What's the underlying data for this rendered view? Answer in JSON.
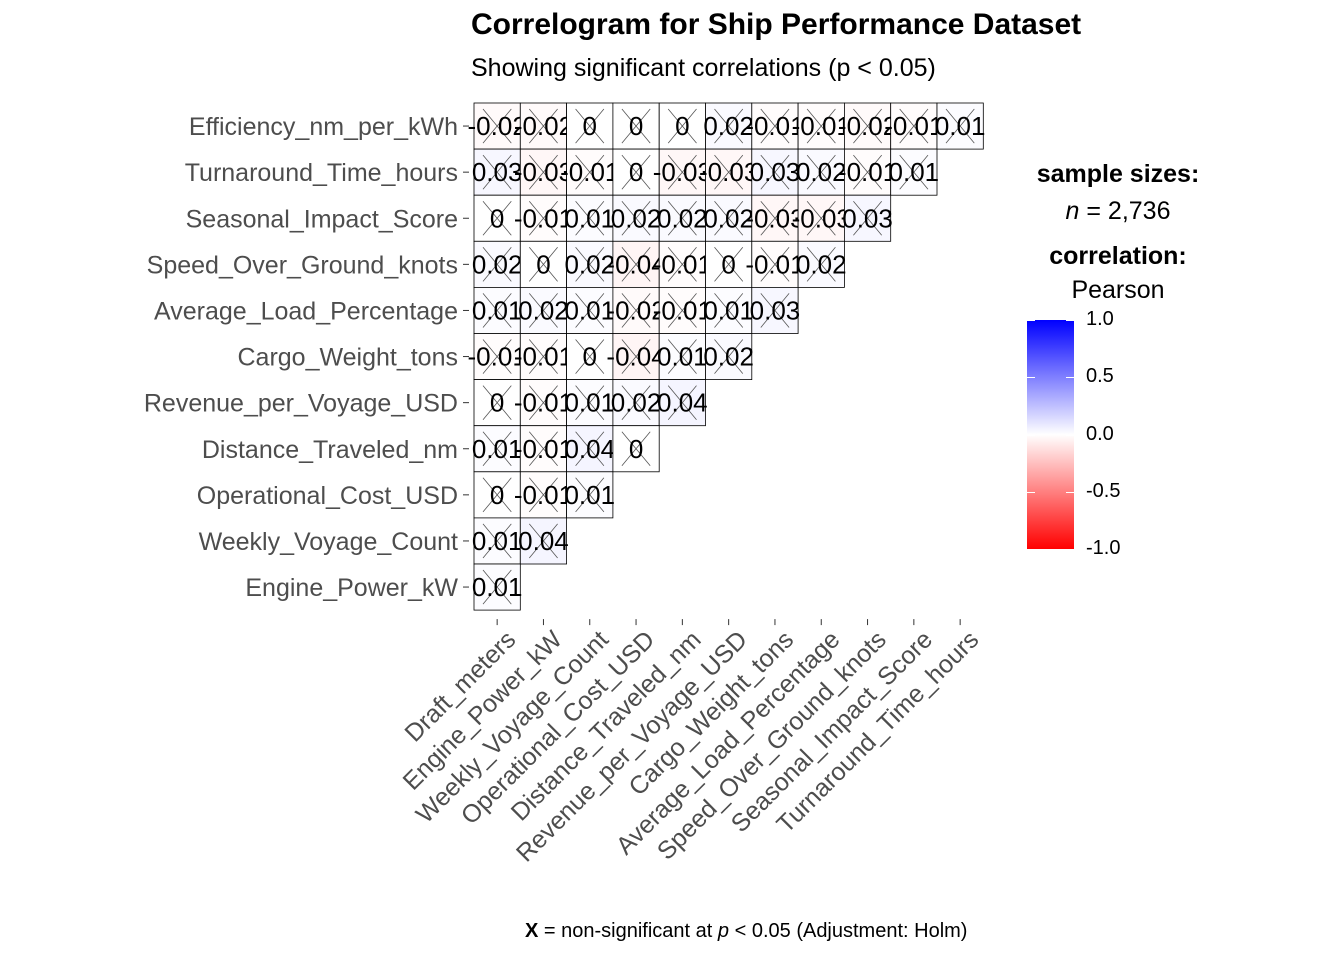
{
  "title": "Correlogram for Ship Performance Dataset",
  "subtitle": "Showing significant correlations (p < 0.05)",
  "legend": {
    "sample_title": "sample sizes:",
    "n_symbol": "n",
    "n_value": "= 2,736",
    "corr_title": "correlation:",
    "corr_method": "Pearson",
    "colorbar_ticks": [
      "1.0",
      "0.5",
      "0.0",
      "-0.5",
      "-1.0"
    ],
    "colors": {
      "high": "#0000ff",
      "mid": "#ffffff",
      "low": "#ff0000"
    }
  },
  "caption": {
    "x_mark": "X",
    "text1": "= non-significant at",
    "p": "p",
    "text2": "< 0.05 (Adjustment: Holm)"
  },
  "chart_data": {
    "type": "heatmap",
    "x_labels": [
      "Draft_meters",
      "Engine_Power_kW",
      "Weekly_Voyage_Count",
      "Operational_Cost_USD",
      "Distance_Traveled_nm",
      "Revenue_per_Voyage_USD",
      "Cargo_Weight_tons",
      "Average_Load_Percentage",
      "Speed_Over_Ground_knots",
      "Seasonal_Impact_Score",
      "Turnaround_Time_hours"
    ],
    "y_labels": [
      "Efficiency_nm_per_kWh",
      "Turnaround_Time_hours",
      "Seasonal_Impact_Score",
      "Speed_Over_Ground_knots",
      "Average_Load_Percentage",
      "Cargo_Weight_tons",
      "Revenue_per_Voyage_USD",
      "Distance_Traveled_nm",
      "Operational_Cost_USD",
      "Weekly_Voyage_Count",
      "Engine_Power_kW"
    ],
    "values": [
      [
        "-0.02",
        "-0.02",
        "0",
        "0",
        "0",
        "0.02",
        "-0.01",
        "-0.01",
        "-0.02",
        "-0.01",
        "0.01"
      ],
      [
        "0.03",
        "-0.03",
        "-0.01",
        "0",
        "-0.03",
        "-0.03",
        "0.03",
        "0.02",
        "-0.01",
        "0.01"
      ],
      [
        "0",
        "-0.01",
        "0.01",
        "0.02",
        "0.02",
        "0.02",
        "-0.03",
        "-0.03",
        "0.03"
      ],
      [
        "0.02",
        "0",
        "0.02",
        "-0.04",
        "-0.01",
        "0",
        "-0.01",
        "0.02"
      ],
      [
        "0.01",
        "0.02",
        "0.01",
        "-0.02",
        "-0.01",
        "0.01",
        "0.03"
      ],
      [
        "-0.01",
        "-0.01",
        "0",
        "-0.04",
        "0.01",
        "0.02"
      ],
      [
        "0",
        "-0.01",
        "0.01",
        "0.02",
        "0.04"
      ],
      [
        "0.01",
        "-0.01",
        "0.04",
        "0"
      ],
      [
        "0",
        "-0.01",
        "0.01"
      ],
      [
        "0.01",
        "0.04"
      ],
      [
        "0.01"
      ]
    ],
    "significant": "none",
    "sample_size": 2736,
    "color_scale": {
      "min": -1.0,
      "max": 1.0,
      "low": "#ff0000",
      "mid": "#ffffff",
      "high": "#0000ff"
    }
  }
}
